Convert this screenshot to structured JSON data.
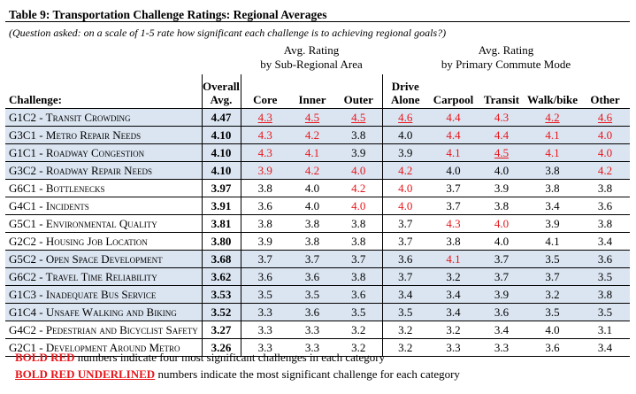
{
  "title": "Table 9: Transportation Challenge Ratings: Regional Averages",
  "note": "(Question asked: on a scale of 1-5 rate how significant each challenge is to achieving regional goals?)",
  "groups": {
    "subregional": {
      "line1": "Avg. Rating",
      "line2": "by Sub-Regional Area"
    },
    "commute": {
      "line1": "Avg. Rating",
      "line2": "by Primary Commute Mode"
    }
  },
  "columns": {
    "challenge": "Challenge:",
    "overall_line1": "Overall",
    "overall_line2": "Avg.",
    "core": "Core",
    "inner": "Inner",
    "outer": "Outer",
    "drive_line1": "Drive",
    "drive_line2": "Alone",
    "carpool": "Carpool",
    "transit": "Transit",
    "walkbike": "Walk/bike",
    "other": "Other"
  },
  "rows": [
    {
      "name": "G1C2 - Transit Crowding",
      "overall": "4.47",
      "v": [
        "4.3",
        "4.5",
        "4.5",
        "4.6",
        "4.4",
        "4.3",
        "4.2",
        "4.6"
      ],
      "s": [
        "u",
        "u",
        "u",
        "u",
        "r",
        "r",
        "u",
        "u"
      ],
      "shade": true
    },
    {
      "name": "G3C1 - Metro Repair Needs",
      "overall": "4.10",
      "v": [
        "4.3",
        "4.2",
        "3.8",
        "4.0",
        "4.4",
        "4.4",
        "4.1",
        "4.0"
      ],
      "s": [
        "r",
        "r",
        "n",
        "n",
        "r",
        "r",
        "r",
        "r"
      ],
      "shade": true
    },
    {
      "name": "G1C1 - Roadway Congestion",
      "overall": "4.10",
      "v": [
        "4.3",
        "4.1",
        "3.9",
        "3.9",
        "4.1",
        "4.5",
        "4.1",
        "4.0"
      ],
      "s": [
        "r",
        "r",
        "n",
        "n",
        "r",
        "u",
        "r",
        "r"
      ],
      "shade": true
    },
    {
      "name": "G3C2 - Roadway Repair Needs",
      "overall": "4.10",
      "v": [
        "3.9",
        "4.2",
        "4.0",
        "4.2",
        "4.0",
        "4.0",
        "3.8",
        "4.2"
      ],
      "s": [
        "r",
        "r",
        "r",
        "r",
        "n",
        "n",
        "n",
        "r"
      ],
      "shade": true
    },
    {
      "name": "G6C1 - Bottlenecks",
      "overall": "3.97",
      "v": [
        "3.8",
        "4.0",
        "4.2",
        "4.0",
        "3.7",
        "3.9",
        "3.8",
        "3.8"
      ],
      "s": [
        "n",
        "n",
        "r",
        "r",
        "n",
        "n",
        "n",
        "n"
      ],
      "shade": false
    },
    {
      "name": "G4C1 - Incidents",
      "overall": "3.91",
      "v": [
        "3.6",
        "4.0",
        "4.0",
        "4.0",
        "3.7",
        "3.8",
        "3.4",
        "3.6"
      ],
      "s": [
        "n",
        "n",
        "r",
        "r",
        "n",
        "n",
        "n",
        "n"
      ],
      "shade": false
    },
    {
      "name": "G5C1 - Environmental Quality",
      "overall": "3.81",
      "v": [
        "3.8",
        "3.8",
        "3.8",
        "3.7",
        "4.3",
        "4.0",
        "3.9",
        "3.8"
      ],
      "s": [
        "n",
        "n",
        "n",
        "n",
        "r",
        "r",
        "n",
        "n"
      ],
      "shade": false
    },
    {
      "name": "G2C2 - Housing Job Location",
      "overall": "3.80",
      "v": [
        "3.9",
        "3.8",
        "3.8",
        "3.7",
        "3.8",
        "4.0",
        "4.1",
        "3.4"
      ],
      "s": [
        "n",
        "n",
        "n",
        "n",
        "n",
        "n",
        "n",
        "n"
      ],
      "shade": false
    },
    {
      "name": "G5C2 - Open Space Development",
      "overall": "3.68",
      "v": [
        "3.7",
        "3.7",
        "3.7",
        "3.6",
        "4.1",
        "3.7",
        "3.5",
        "3.6"
      ],
      "s": [
        "n",
        "n",
        "n",
        "n",
        "r",
        "n",
        "n",
        "n"
      ],
      "shade": true
    },
    {
      "name": "G6C2 - Travel Time Reliability",
      "overall": "3.62",
      "v": [
        "3.6",
        "3.6",
        "3.8",
        "3.7",
        "3.2",
        "3.7",
        "3.7",
        "3.5"
      ],
      "s": [
        "n",
        "n",
        "n",
        "n",
        "n",
        "n",
        "n",
        "n"
      ],
      "shade": true
    },
    {
      "name": "G1C3 - Inadequate Bus Service",
      "overall": "3.53",
      "v": [
        "3.5",
        "3.5",
        "3.6",
        "3.4",
        "3.4",
        "3.9",
        "3.2",
        "3.8"
      ],
      "s": [
        "n",
        "n",
        "n",
        "n",
        "n",
        "n",
        "n",
        "n"
      ],
      "shade": true
    },
    {
      "name": "G1C4 - Unsafe Walking and Biking",
      "overall": "3.52",
      "v": [
        "3.3",
        "3.6",
        "3.5",
        "3.5",
        "3.4",
        "3.6",
        "3.5",
        "3.5"
      ],
      "s": [
        "n",
        "n",
        "n",
        "n",
        "n",
        "n",
        "n",
        "n"
      ],
      "shade": true
    },
    {
      "name": "G4C2 - Pedestrian and Bicyclist Safety",
      "overall": "3.27",
      "v": [
        "3.3",
        "3.3",
        "3.2",
        "3.2",
        "3.2",
        "3.4",
        "4.0",
        "3.1"
      ],
      "s": [
        "n",
        "n",
        "n",
        "n",
        "n",
        "n",
        "n",
        "n"
      ],
      "shade": false
    },
    {
      "name": "G2C1 - Development Around Metro",
      "overall": "3.26",
      "v": [
        "3.3",
        "3.3",
        "3.2",
        "3.2",
        "3.3",
        "3.3",
        "3.6",
        "3.4"
      ],
      "s": [
        "n",
        "n",
        "n",
        "n",
        "n",
        "n",
        "n",
        "n"
      ],
      "shade": false
    }
  ],
  "legend": {
    "red_key": "BOLD RED",
    "red_text": " numbers indicate four most significant challenges in each category",
    "under_key": "BOLD RED UNDERLINED",
    "under_text": " numbers indicate the most significant challenge for each category"
  },
  "colors": {
    "highlight": "#e8161b",
    "shade": "#dbe5f1"
  }
}
